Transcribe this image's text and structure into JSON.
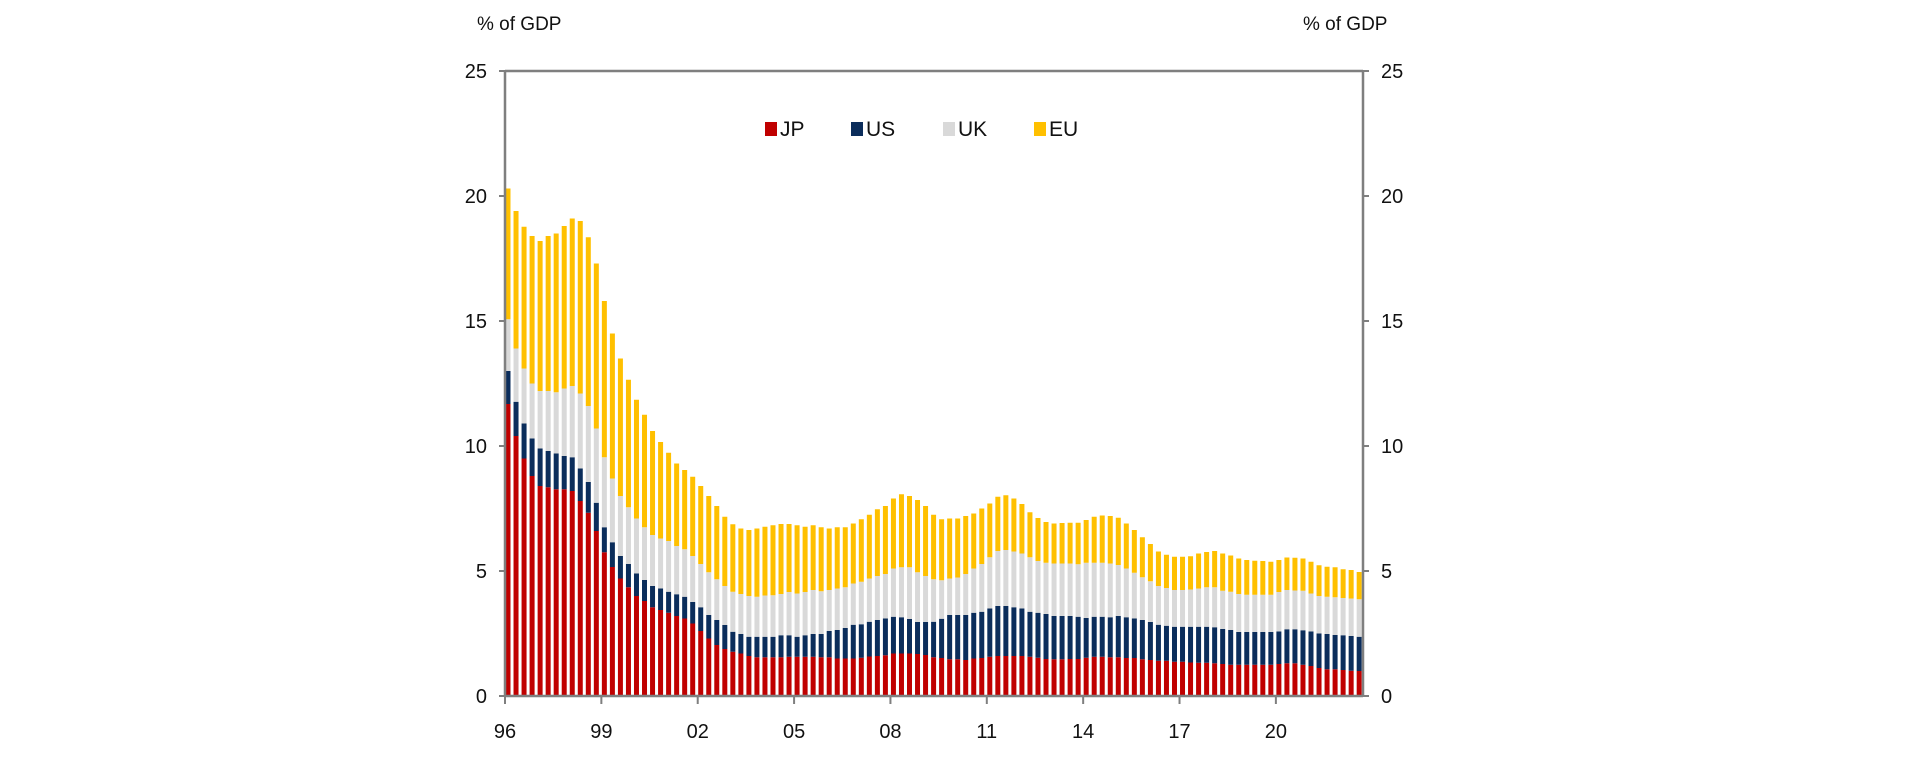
{
  "chart_data": {
    "type": "bar",
    "stacked": true,
    "title": "",
    "left_unit_label": "% of GDP",
    "right_unit_label": "% of GDP",
    "xlabel": "",
    "ylabel": "% of GDP",
    "ylim": [
      0,
      25
    ],
    "yticks": [
      0,
      5,
      10,
      15,
      20,
      25
    ],
    "xtick_labels": [
      "96",
      "99",
      "02",
      "05",
      "08",
      "11",
      "14",
      "17",
      "20"
    ],
    "xtick_years": [
      1996,
      1999,
      2002,
      2005,
      2008,
      2011,
      2014,
      2017,
      2020
    ],
    "frequency": "quarterly",
    "start_period": "1996Q1",
    "end_period": "2022Q3",
    "grid": false,
    "legend_placement": "top-center",
    "legend": [
      {
        "name": "JP",
        "color": "#c00000"
      },
      {
        "name": "US",
        "color": "#0b2d5b"
      },
      {
        "name": "UK",
        "color": "#d9d9d9"
      },
      {
        "name": "EU",
        "color": "#ffc000"
      }
    ],
    "cumulative_tops_note": "values below are individual series contributions (stacked JP, US, UK, EU from bottom)",
    "series": [
      {
        "name": "JP",
        "values": [
          11.68,
          10.4,
          9.5,
          8.8,
          8.4,
          8.35,
          8.27,
          8.27,
          8.2,
          7.8,
          7.33,
          6.6,
          5.75,
          5.16,
          4.7,
          4.35,
          4.0,
          3.8,
          3.55,
          3.44,
          3.33,
          3.2,
          3.1,
          2.9,
          2.6,
          2.3,
          2.04,
          1.88,
          1.77,
          1.7,
          1.6,
          1.55,
          1.55,
          1.55,
          1.55,
          1.57,
          1.57,
          1.57,
          1.57,
          1.55,
          1.55,
          1.5,
          1.5,
          1.5,
          1.53,
          1.58,
          1.6,
          1.63,
          1.7,
          1.7,
          1.7,
          1.68,
          1.64,
          1.55,
          1.52,
          1.47,
          1.47,
          1.44,
          1.5,
          1.52,
          1.57,
          1.6,
          1.6,
          1.6,
          1.6,
          1.57,
          1.53,
          1.48,
          1.47,
          1.47,
          1.48,
          1.48,
          1.53,
          1.57,
          1.57,
          1.55,
          1.55,
          1.52,
          1.52,
          1.47,
          1.44,
          1.41,
          1.41,
          1.37,
          1.37,
          1.34,
          1.33,
          1.33,
          1.31,
          1.28,
          1.25,
          1.25,
          1.25,
          1.25,
          1.25,
          1.25,
          1.28,
          1.31,
          1.31,
          1.25,
          1.2,
          1.12,
          1.07,
          1.07,
          1.04,
          1.01,
          1.0
        ]
      },
      {
        "name": "US",
        "values": [
          1.32,
          1.37,
          1.4,
          1.5,
          1.5,
          1.45,
          1.43,
          1.33,
          1.35,
          1.3,
          1.23,
          1.13,
          1.0,
          0.99,
          0.9,
          0.93,
          0.9,
          0.84,
          0.85,
          0.86,
          0.84,
          0.87,
          0.87,
          0.86,
          0.95,
          0.94,
          1.0,
          0.96,
          0.8,
          0.78,
          0.77,
          0.82,
          0.82,
          0.82,
          0.88,
          0.86,
          0.8,
          0.86,
          0.91,
          0.93,
          1.05,
          1.14,
          1.22,
          1.35,
          1.34,
          1.39,
          1.44,
          1.47,
          1.47,
          1.45,
          1.38,
          1.28,
          1.32,
          1.42,
          1.57,
          1.77,
          1.77,
          1.8,
          1.83,
          1.85,
          1.93,
          2.0,
          2.0,
          1.95,
          1.9,
          1.8,
          1.8,
          1.8,
          1.73,
          1.73,
          1.72,
          1.69,
          1.59,
          1.6,
          1.6,
          1.6,
          1.65,
          1.63,
          1.58,
          1.57,
          1.52,
          1.44,
          1.4,
          1.4,
          1.4,
          1.43,
          1.44,
          1.44,
          1.44,
          1.4,
          1.39,
          1.31,
          1.31,
          1.31,
          1.31,
          1.31,
          1.3,
          1.36,
          1.36,
          1.38,
          1.38,
          1.38,
          1.41,
          1.37,
          1.39,
          1.39,
          1.37
        ]
      },
      {
        "name": "UK",
        "values": [
          2.07,
          2.13,
          2.2,
          2.2,
          2.3,
          2.4,
          2.45,
          2.7,
          2.85,
          3.0,
          3.04,
          2.97,
          2.8,
          2.55,
          2.4,
          2.27,
          2.2,
          2.11,
          2.04,
          2.0,
          2.03,
          1.93,
          1.9,
          1.84,
          1.73,
          1.71,
          1.63,
          1.56,
          1.6,
          1.6,
          1.63,
          1.6,
          1.65,
          1.66,
          1.65,
          1.73,
          1.73,
          1.73,
          1.76,
          1.71,
          1.64,
          1.66,
          1.63,
          1.65,
          1.7,
          1.73,
          1.76,
          1.78,
          1.93,
          2.0,
          2.07,
          1.99,
          1.84,
          1.7,
          1.54,
          1.46,
          1.5,
          1.64,
          1.77,
          1.91,
          2.05,
          2.2,
          2.24,
          2.23,
          2.2,
          2.18,
          2.07,
          2.05,
          2.1,
          2.1,
          2.1,
          2.1,
          2.21,
          2.16,
          2.16,
          2.15,
          2.04,
          1.95,
          1.83,
          1.71,
          1.63,
          1.55,
          1.51,
          1.47,
          1.47,
          1.49,
          1.53,
          1.58,
          1.6,
          1.53,
          1.53,
          1.52,
          1.49,
          1.49,
          1.49,
          1.49,
          1.58,
          1.57,
          1.55,
          1.58,
          1.52,
          1.5,
          1.49,
          1.51,
          1.49,
          1.5,
          1.5
        ]
      },
      {
        "name": "EU",
        "values": [
          5.23,
          5.5,
          5.67,
          5.9,
          6.0,
          6.2,
          6.35,
          6.5,
          6.7,
          6.9,
          6.75,
          6.6,
          6.25,
          5.8,
          5.5,
          5.1,
          4.75,
          4.5,
          4.16,
          3.86,
          3.53,
          3.3,
          3.17,
          3.17,
          3.12,
          3.05,
          2.93,
          2.77,
          2.7,
          2.62,
          2.64,
          2.73,
          2.75,
          2.8,
          2.8,
          2.72,
          2.73,
          2.61,
          2.59,
          2.56,
          2.46,
          2.45,
          2.4,
          2.4,
          2.5,
          2.55,
          2.67,
          2.72,
          2.8,
          2.92,
          2.85,
          2.89,
          2.8,
          2.58,
          2.44,
          2.4,
          2.36,
          2.32,
          2.2,
          2.22,
          2.15,
          2.17,
          2.19,
          2.12,
          1.98,
          1.8,
          1.72,
          1.63,
          1.6,
          1.62,
          1.63,
          1.66,
          1.71,
          1.84,
          1.89,
          1.9,
          1.89,
          1.8,
          1.71,
          1.6,
          1.49,
          1.38,
          1.33,
          1.33,
          1.33,
          1.33,
          1.4,
          1.41,
          1.45,
          1.49,
          1.45,
          1.42,
          1.39,
          1.36,
          1.35,
          1.32,
          1.28,
          1.3,
          1.31,
          1.29,
          1.27,
          1.23,
          1.2,
          1.2,
          1.15,
          1.14,
          1.09
        ]
      }
    ]
  }
}
